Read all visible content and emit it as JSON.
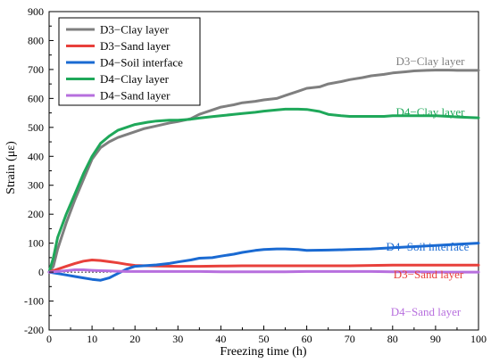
{
  "chart_data": {
    "type": "line",
    "xlabel": "Freezing time (h)",
    "ylabel": "Strain (με)",
    "xlim": [
      0,
      100
    ],
    "ylim": [
      -200,
      900
    ],
    "x_ticks": [
      0,
      10,
      20,
      30,
      40,
      50,
      60,
      70,
      80,
      90,
      100
    ],
    "y_ticks": [
      -200,
      -100,
      0,
      100,
      200,
      300,
      400,
      500,
      600,
      700,
      800,
      900
    ],
    "grid": false,
    "legend_position": "top-left",
    "series": [
      {
        "name": "D3−Clay layer",
        "color": "#7f7f7f",
        "end_label": "D3−Clay layer",
        "x": [
          0,
          1,
          2,
          4,
          6,
          8,
          10,
          12,
          14,
          16,
          18,
          20,
          22,
          25,
          28,
          30,
          33,
          35,
          38,
          40,
          43,
          45,
          48,
          50,
          53,
          55,
          58,
          60,
          63,
          65,
          68,
          70,
          73,
          75,
          78,
          80,
          83,
          85,
          88,
          90,
          93,
          95,
          98,
          100
        ],
        "y": [
          0,
          20,
          80,
          170,
          250,
          320,
          390,
          430,
          450,
          465,
          475,
          485,
          495,
          505,
          515,
          520,
          530,
          545,
          560,
          570,
          578,
          585,
          590,
          595,
          600,
          610,
          625,
          635,
          640,
          650,
          658,
          665,
          672,
          678,
          683,
          688,
          692,
          695,
          697,
          698,
          698,
          697,
          697,
          697
        ]
      },
      {
        "name": "D3−Sand layer",
        "color": "#e8403b",
        "end_label": "D3−Sand layer",
        "x": [
          0,
          2,
          4,
          6,
          8,
          10,
          12,
          14,
          16,
          18,
          20,
          25,
          30,
          35,
          40,
          45,
          50,
          55,
          60,
          65,
          70,
          75,
          80,
          85,
          90,
          95,
          100
        ],
        "y": [
          0,
          10,
          20,
          30,
          38,
          42,
          40,
          36,
          32,
          27,
          23,
          21,
          20,
          20,
          21,
          22,
          22,
          22,
          22,
          22,
          22,
          23,
          24,
          24,
          24,
          24,
          24
        ]
      },
      {
        "name": "D4−Soil interface",
        "color": "#1a6ad2",
        "end_label": "D4−Soil interface",
        "x": [
          0,
          2,
          4,
          6,
          8,
          10,
          12,
          14,
          16,
          18,
          20,
          22,
          25,
          28,
          30,
          33,
          35,
          38,
          40,
          43,
          45,
          48,
          50,
          53,
          55,
          58,
          60,
          65,
          70,
          75,
          80,
          85,
          90,
          95,
          100
        ],
        "y": [
          0,
          -5,
          -10,
          -15,
          -20,
          -25,
          -28,
          -20,
          -5,
          10,
          20,
          22,
          25,
          30,
          35,
          42,
          48,
          50,
          55,
          62,
          68,
          75,
          78,
          80,
          80,
          78,
          75,
          76,
          78,
          80,
          84,
          88,
          92,
          96,
          100
        ]
      },
      {
        "name": "D4−Clay layer",
        "color": "#1fa85a",
        "end_label": "D4−Clay layer",
        "x": [
          0,
          1,
          2,
          4,
          6,
          8,
          10,
          12,
          14,
          16,
          18,
          20,
          23,
          25,
          28,
          30,
          33,
          35,
          38,
          40,
          43,
          45,
          48,
          50,
          53,
          55,
          58,
          60,
          63,
          65,
          68,
          70,
          73,
          75,
          78,
          80,
          83,
          85,
          88,
          90,
          93,
          95,
          98,
          100
        ],
        "y": [
          0,
          50,
          120,
          200,
          270,
          340,
          400,
          445,
          470,
          490,
          500,
          510,
          518,
          522,
          525,
          525,
          528,
          532,
          537,
          540,
          545,
          548,
          552,
          556,
          560,
          563,
          563,
          562,
          555,
          545,
          540,
          538,
          538,
          538,
          538,
          540,
          540,
          540,
          540,
          540,
          538,
          536,
          534,
          533
        ]
      },
      {
        "name": "D4−Sand layer",
        "color": "#b76fde",
        "end_label": "D4−Sand layer",
        "x": [
          0,
          2,
          4,
          6,
          8,
          10,
          12,
          14,
          16,
          18,
          20,
          25,
          30,
          35,
          40,
          45,
          50,
          55,
          60,
          65,
          70,
          75,
          80,
          85,
          90,
          95,
          100
        ],
        "y": [
          0,
          2,
          5,
          8,
          8,
          6,
          5,
          4,
          3,
          2,
          2,
          2,
          2,
          2,
          1,
          1,
          1,
          1,
          2,
          2,
          2,
          2,
          1,
          1,
          0,
          0,
          0
        ]
      }
    ]
  }
}
